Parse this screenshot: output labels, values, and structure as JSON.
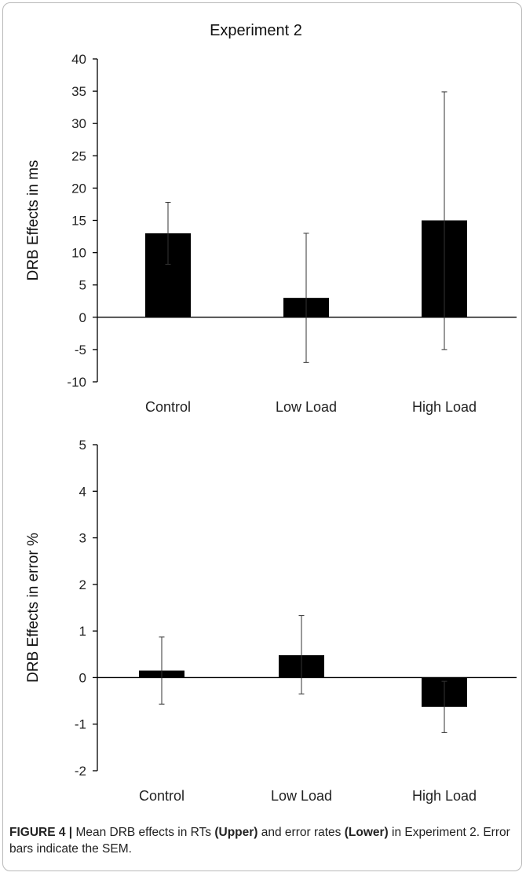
{
  "chart_data": [
    {
      "type": "bar",
      "title": "Experiment 2",
      "ylabel": "DRB Effects in ms",
      "xlabel": "",
      "categories": [
        "Control",
        "Low Load",
        "High Load"
      ],
      "values": [
        13,
        3,
        15
      ],
      "error_low": [
        8.2,
        -7,
        -5
      ],
      "error_high": [
        17.8,
        13,
        34.9
      ],
      "ylim": [
        -10,
        40
      ],
      "yticks": [
        -10,
        -5,
        0,
        5,
        10,
        15,
        20,
        25,
        30,
        35,
        40
      ],
      "bar_color": "#000000",
      "grid": false,
      "legend": "none"
    },
    {
      "type": "bar",
      "title": "",
      "ylabel": "DRB Effects in error %",
      "xlabel": "",
      "categories": [
        "Control",
        "Low Load",
        "High Load"
      ],
      "values": [
        0.15,
        0.48,
        -0.63
      ],
      "error_low": [
        -0.57,
        -0.35,
        -1.18
      ],
      "error_high": [
        0.87,
        1.33,
        -0.08
      ],
      "ylim": [
        -2,
        5
      ],
      "yticks": [
        -2,
        -1,
        0,
        1,
        2,
        3,
        4,
        5
      ],
      "bar_color": "#000000",
      "grid": false,
      "legend": "none"
    }
  ],
  "caption": {
    "label": "FIGURE 4 |",
    "t1": " Mean DRB effects in RTs ",
    "b1": "(Upper)",
    "t2": " and error rates ",
    "b2": "(Lower)",
    "t3": " in Experiment 2. Error bars indicate the SEM."
  }
}
